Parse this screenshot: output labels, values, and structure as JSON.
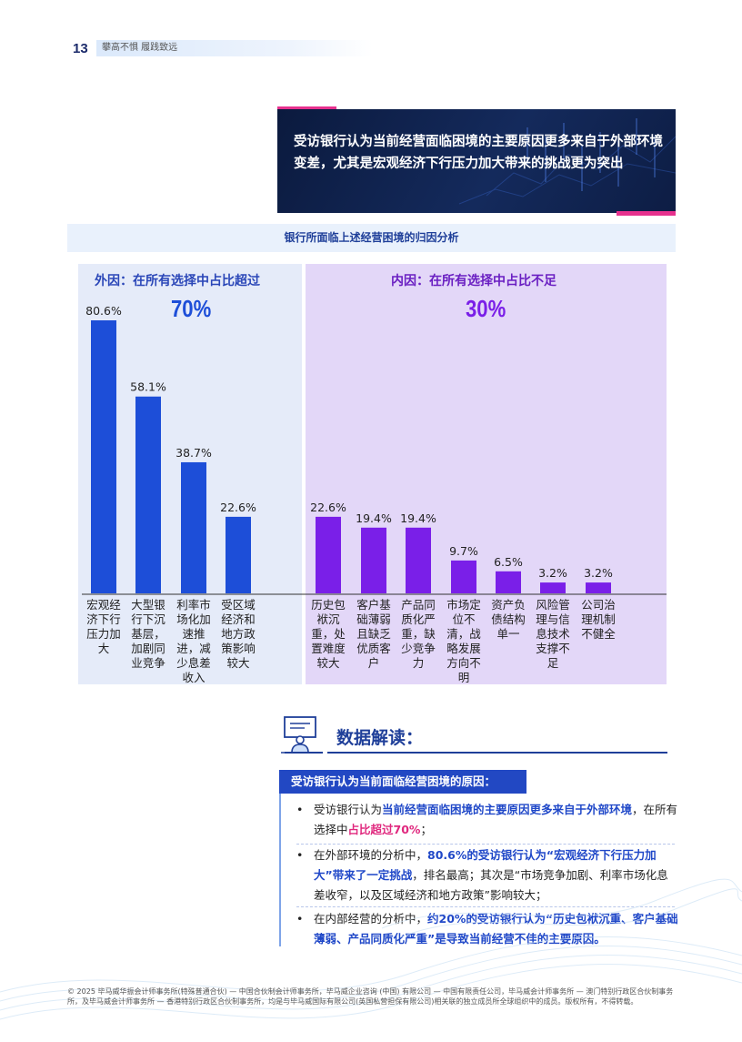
{
  "header": {
    "page_number": "13",
    "tagline": "攀高不惧 履践致远"
  },
  "banner": {
    "text": "受访银行认为当前经营面临困境的主要原因更多来自于外部环境变差，尤其是宏观经济下行压力加大带来的挑战更为突出"
  },
  "chart_data": {
    "type": "bar",
    "title": "银行所面临上述经营困境的归因分析",
    "groups": [
      {
        "heading": "外因：在所有选择中占比超过",
        "group_share": "70%",
        "color": "#1d4ed8",
        "categories": [
          "宏观经济下行压力加大",
          "大型银行下沉基层，加剧同业竞争",
          "利率市场化加速推进，减少息差收入",
          "受区域经济和地方政策影响较大"
        ],
        "values": [
          80.6,
          58.1,
          38.7,
          22.6
        ],
        "labels": [
          "80.6%",
          "58.1%",
          "38.7%",
          "22.6%"
        ]
      },
      {
        "heading": "内因：在所有选择中占比不足",
        "group_share": "30%",
        "color": "#7a1fe8",
        "categories": [
          "历史包袱沉重，处置难度较大",
          "客户基础薄弱且缺乏优质客户",
          "产品同质化严重，缺少竞争力",
          "市场定位不清，战略发展方向不明",
          "资产负债结构单一",
          "风险管理与信息技术支撑不足",
          "公司治理机制不健全"
        ],
        "values": [
          22.6,
          19.4,
          19.4,
          9.7,
          6.5,
          3.2,
          3.2
        ],
        "labels": [
          "22.6%",
          "19.4%",
          "19.4%",
          "9.7%",
          "6.5%",
          "3.2%",
          "3.2%"
        ]
      }
    ],
    "ylim": [
      0,
      100
    ],
    "grid": false
  },
  "interpretation": {
    "title": "数据解读：",
    "subtitle": "受访银行认为当前面临经营困境的原因：",
    "bullets": [
      [
        {
          "t": "受访银行认为",
          "s": ""
        },
        {
          "t": "当前经营面临困境的主要原因更多来自于外部环境",
          "s": "hl"
        },
        {
          "t": "，在所有选择中",
          "s": ""
        },
        {
          "t": "占比超过70%",
          "s": "hlr"
        },
        {
          "t": "；",
          "s": ""
        }
      ],
      [
        {
          "t": "在外部环境的分析中，",
          "s": ""
        },
        {
          "t": "80.6%的受访银行认为“宏观经济下行压力加大”带来了一定挑战",
          "s": "hl"
        },
        {
          "t": "，排名最高；其次是“市场竞争加剧、利率市场化息差收窄，以及区域经济和地方政策”影响较大；",
          "s": ""
        }
      ],
      [
        {
          "t": "在内部经营的分析中，",
          "s": ""
        },
        {
          "t": "约20%的受访银行认为“历史包袱沉重、客户基础薄弱、产品同质化严重”是导致当前经营不佳的主要原因。",
          "s": "hl"
        }
      ]
    ]
  },
  "footer": {
    "text": "© 2025 毕马威华振会计师事务所(特殊普通合伙) — 中国合伙制会计师事务所，毕马威企业咨询 (中国) 有限公司 — 中国有限责任公司，毕马威会计师事务所 — 澳门特别行政区合伙制事务所，及毕马威会计师事务所 — 香港特别行政区合伙制事务所，均是与毕马威国际有限公司(英国私营担保有限公司)相关联的独立成员所全球组织中的成员。版权所有，不得转载。"
  },
  "colors": {
    "external_bar": "#1d4ed8",
    "internal_bar": "#7a1fe8",
    "accent": "#e6318e",
    "brand_blue": "#1f3f99"
  },
  "icons": {
    "interpretation": "presenter-board-icon"
  }
}
